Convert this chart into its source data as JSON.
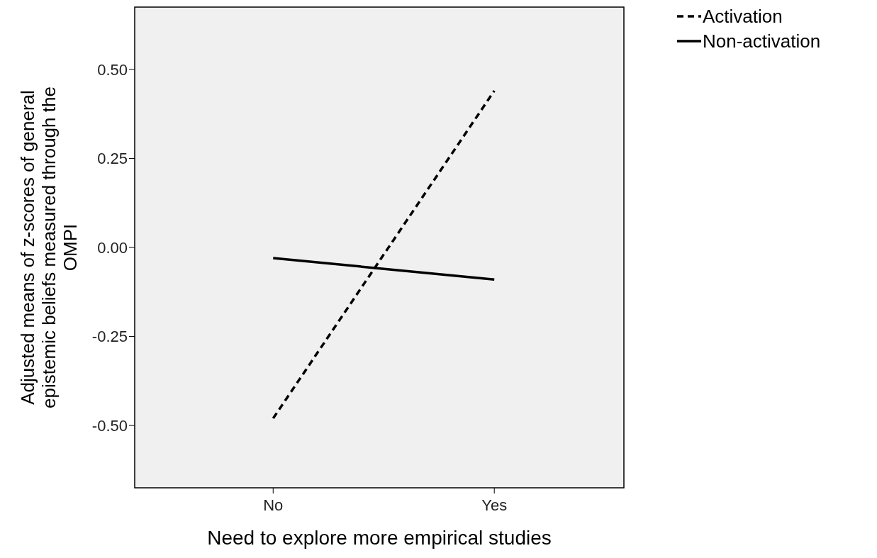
{
  "chart_data": {
    "type": "line",
    "xlabel": "Need to explore more empirical studies",
    "ylabel": "Adjusted means of z-scores of general epistemic beliefs measured through the OMPI",
    "categories": [
      "No",
      "Yes"
    ],
    "ylim": [
      -0.675,
      0.675
    ],
    "yticks": [
      {
        "value": -0.5,
        "label": "-0.50"
      },
      {
        "value": -0.25,
        "label": "-0.25"
      },
      {
        "value": 0,
        "label": "0.00"
      },
      {
        "value": 0.25,
        "label": "0.25"
      },
      {
        "value": 0.5,
        "label": "0.50"
      }
    ],
    "legend": "top right",
    "series": [
      {
        "name": "Activation",
        "color": "#000000",
        "line_style": "dashed",
        "values": [
          -0.48,
          0.44
        ]
      },
      {
        "name": "Non-activation",
        "color": "#000000",
        "line_style": "solid",
        "values": [
          -0.03,
          -0.09
        ]
      }
    ]
  }
}
